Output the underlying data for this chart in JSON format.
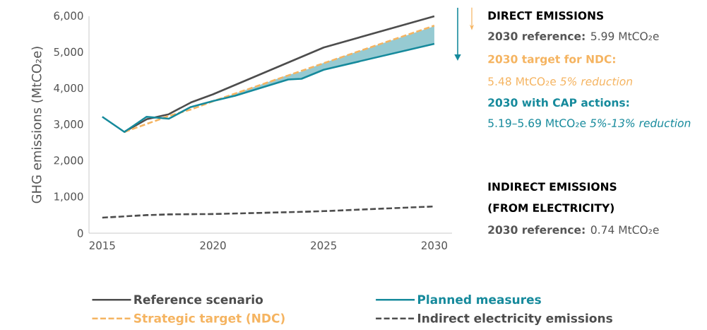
{
  "chart_data": {
    "type": "line",
    "ylabel": "GHG emissions (MtCO₂e)",
    "xlim": [
      2014.4,
      2030.8
    ],
    "xticks": [
      2015,
      2020,
      2025,
      2030
    ],
    "ylim": [
      0,
      6000
    ],
    "yticks": [
      {
        "value": 0,
        "label": "0"
      },
      {
        "value": 1000,
        "label": "1,000"
      },
      {
        "value": 2000,
        "label": "2,000"
      },
      {
        "value": 3000,
        "label": "3,000"
      },
      {
        "value": 4000,
        "label": "4,000"
      },
      {
        "value": 5000,
        "label": "5,000"
      },
      {
        "value": 6000,
        "label": "6,000"
      }
    ],
    "grid": false,
    "legend": "bottom",
    "marker": "none",
    "series": [
      {
        "name": "Reference scenario",
        "color": "#4d4d4d",
        "line_style": "solid",
        "x": [
          2016,
          2017,
          2018,
          2019,
          2020,
          2025,
          2030
        ],
        "values": [
          2800,
          3150,
          3290,
          3615,
          3840,
          5135,
          6000
        ]
      },
      {
        "name": "Strategic target (NDC)",
        "color": "#f5b461",
        "line_style": "dashed",
        "x": [
          2016,
          2018,
          2019,
          2020,
          2025,
          2030
        ],
        "values": [
          2800,
          3240,
          3420,
          3650,
          4700,
          5740
        ]
      },
      {
        "name": "Planned measures",
        "color": "#168a9c",
        "line_style": "solid",
        "x": [
          2015,
          2016,
          2017,
          2018,
          2019,
          2020,
          2021,
          2023.4,
          2024,
          2025,
          2030
        ],
        "values": [
          3220,
          2800,
          3220,
          3165,
          3490,
          3655,
          3800,
          4250,
          4270,
          4520,
          5240
        ],
        "lower": [
          null,
          null,
          null,
          null,
          null,
          3655,
          3800,
          4250,
          4270,
          4520,
          5240
        ],
        "upper": [
          null,
          null,
          null,
          null,
          null,
          3655,
          3860,
          4380,
          4470,
          4710,
          5725
        ]
      },
      {
        "name": "Indirect electricity emissions",
        "color": "#4d4d4d",
        "line_style": "dashed",
        "x": [
          2015,
          2017,
          2018,
          2020,
          2024,
          2025,
          2030
        ],
        "values": [
          430,
          500,
          520,
          530,
          590,
          610,
          740
        ]
      }
    ],
    "annotations": [
      "DIRECT EMISSIONS",
      "**2030 reference:** 5.99 MtCO₂e",
      "2030 target for NDC:",
      "5.48 MtCO₂e *5% reduction*",
      "2030 with CAP actions:",
      "5.19–5.69 MtCO₂e *5%-13% reduction*",
      "INDIRECT EMISSIONS (FROM ELECTRICITY)",
      "**2030 reference:** 0.74 MtCO₂e"
    ]
  }
}
